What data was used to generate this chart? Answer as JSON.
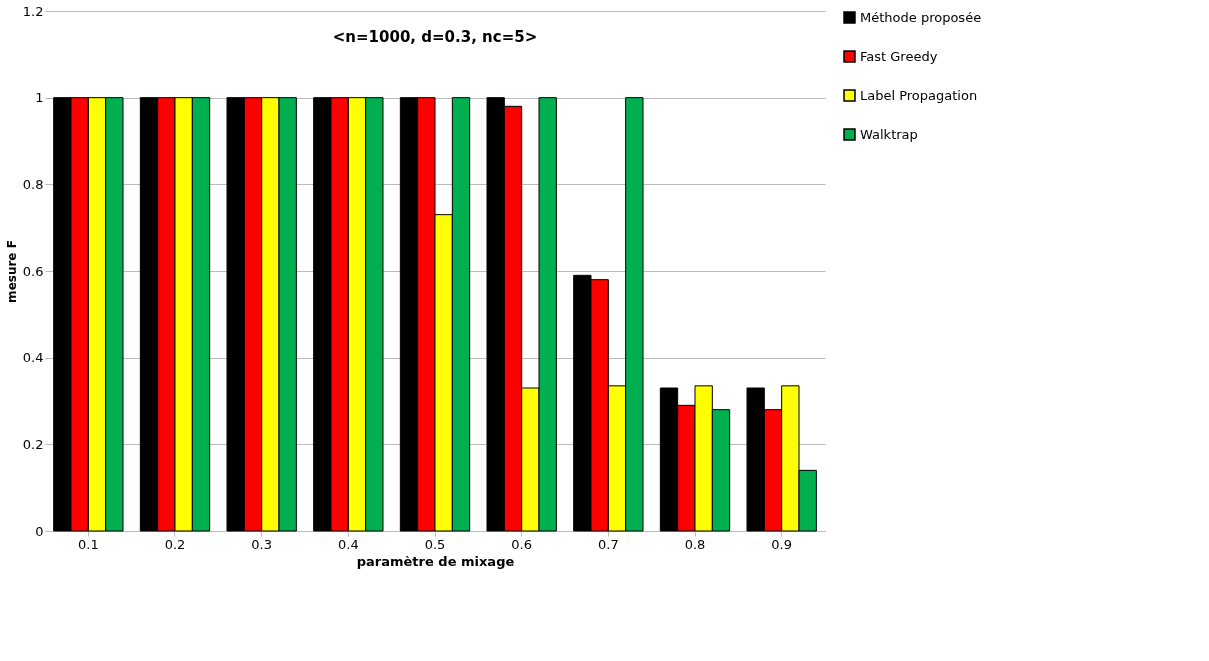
{
  "chart_data": {
    "type": "bar",
    "title": "<n=1000, d=0.3, nc=5>",
    "xlabel": "paramètre de mixage",
    "ylabel": "mesure F",
    "categories": [
      "0.1",
      "0.2",
      "0.3",
      "0.4",
      "0.5",
      "0.6",
      "0.7",
      "0.8",
      "0.9"
    ],
    "series": [
      {
        "name": "Méthode proposée",
        "color": "#000000",
        "values": [
          1,
          1,
          1,
          1,
          1,
          1,
          0.59,
          0.33,
          0.33
        ]
      },
      {
        "name": "Fast Greedy",
        "color": "#ff0000",
        "values": [
          1,
          1,
          1,
          1,
          1,
          0.98,
          0.58,
          0.29,
          0.28
        ]
      },
      {
        "name": "Label Propagation",
        "color": "#ffff00",
        "values": [
          1,
          1,
          1,
          1,
          0.73,
          0.33,
          0.335,
          0.335,
          0.335
        ]
      },
      {
        "name": "Walktrap",
        "color": "#00b050",
        "values": [
          1,
          1,
          1,
          1,
          1,
          1,
          1,
          0.28,
          0.14
        ]
      }
    ],
    "ylim": [
      0,
      1.2
    ],
    "yticks": [
      0,
      0.2,
      0.4,
      0.6,
      0.8,
      1,
      1.2
    ],
    "grid": "y",
    "legend": "right"
  }
}
